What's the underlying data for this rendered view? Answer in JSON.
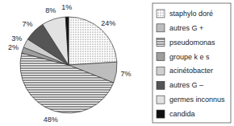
{
  "chart_data": {
    "type": "pie",
    "categories": [
      "staphylo doré",
      "autres G +",
      "pseudomonas",
      "groupe k e s",
      "acinétobacter",
      "autres G –",
      "germes inconnus",
      "candida"
    ],
    "values": [
      24,
      7,
      48,
      2,
      3,
      7,
      8,
      1
    ],
    "value_labels": [
      "24%",
      "7%",
      "48%",
      "2%",
      "3%",
      "7%",
      "8%",
      "1%"
    ],
    "colors": [
      "#ffffff",
      "#bdbdbd",
      "#ffffff",
      "#9e9e9e",
      "#cfcfcf",
      "#555555",
      "#e2e2e2",
      "#111111"
    ],
    "data_labels": true,
    "legend": "right"
  }
}
